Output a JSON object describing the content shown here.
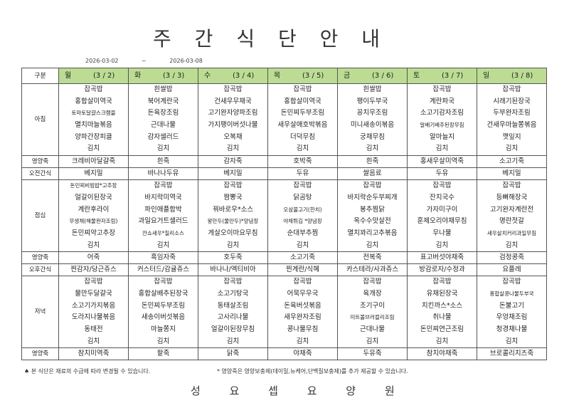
{
  "title": "주 간 식 단 안 내",
  "date_range": {
    "start": "2026-03-02",
    "sep": "~",
    "end": "2026-03-08"
  },
  "header": {
    "label": "구분",
    "days": [
      {
        "day": "월",
        "date": "(3 / 2)"
      },
      {
        "day": "화",
        "date": "(3 / 3)"
      },
      {
        "day": "수",
        "date": "(3 / 4)"
      },
      {
        "day": "목",
        "date": "(3 / 5)"
      },
      {
        "day": "금",
        "date": "(3 / 6)"
      },
      {
        "day": "토",
        "date": "(3 / 7)"
      },
      {
        "day": "일",
        "date": "(3 / 8)"
      }
    ]
  },
  "rows": {
    "breakfast": {
      "label": "아침",
      "days": [
        [
          "잡곡밥",
          "홍합살미역국",
          "토마토달걀스크램블",
          "멸치마늘볶음",
          "양파간장피클",
          "김치"
        ],
        [
          "흰쌀밥",
          "북어계란국",
          "돈육장조림",
          "근대나물",
          "감자샐러드",
          "김치"
        ],
        [
          "잡곡밥",
          "건새우무채국",
          "고기완자양파조림",
          "가지팽이버섯나물",
          "오복채",
          "김치"
        ],
        [
          "잡곡밥",
          "홍합살미역국",
          "돈민찌두부조림",
          "새우살애호박볶음",
          "더덕무침",
          "김치"
        ],
        [
          "흰쌀밥",
          "팽이두부국",
          "꽁치무조림",
          "미니새송이볶음",
          "궁채무침",
          "김치"
        ],
        [
          "잡곡밥",
          "계란파국",
          "소고기감자조림",
          "알배기배추된장무침",
          "알마늘지",
          "김치"
        ],
        [
          "잡곡밥",
          "시래기된장국",
          "두부완자조림",
          "건새우마늘쫑볶음",
          "깻잎지",
          "김치"
        ]
      ]
    },
    "porridge1": {
      "label": "영양죽",
      "days": [
        "크레비아달걀죽",
        "흰죽",
        "감자죽",
        "호박죽",
        "흰죽",
        "홍새우살미역죽",
        "소고기죽"
      ]
    },
    "am_snack": {
      "label": "오전간식",
      "days": [
        "베지밀",
        "바나나두유",
        "베지밀",
        "두유",
        "쌀음료",
        "두유",
        "베지밀"
      ]
    },
    "lunch": {
      "label": "점심",
      "days": [
        [
          "돈민찌비빔밥*고추장",
          "얼갈이된장국",
          "계란후라이",
          "무생채(해물완자조림)",
          "돈민찌약고추장",
          "김치"
        ],
        [
          "잡곡밥",
          "바지락미역국",
          "파인애플함박",
          "과일요거트샐러드",
          "깐쇼새우*칠리소스",
          "김치"
        ],
        [
          "잡곡밥",
          "짬뽕국",
          "꿔바로우*소스",
          "왕만두(물만두)*양념장",
          "게살오이마요무침",
          "김치"
        ],
        [
          "잡곡밥",
          "닭곰탕",
          "오삼불고기(한치)",
          "야채튀김 *양념장",
          "순대부추찜",
          "김치"
        ],
        [
          "잡곡밥",
          "바지락순두부찌개",
          "봉추찜닭",
          "옥수수맛살전",
          "멸치꽈리고추볶음",
          "김치"
        ],
        [
          "잡곡밥",
          "잔치국수",
          "가자미구이",
          "훈제오리야채무침",
          "무나물",
          "김치"
        ],
        [
          "잡곡밥",
          "등뼈해장국",
          "고기완자계란전",
          "명란젓갈",
          "새우살치커리과일무침",
          "김치"
        ]
      ]
    },
    "porridge2": {
      "label": "영양죽",
      "days": [
        "어죽",
        "흑임자죽",
        "호두죽",
        "소고기죽",
        "전복죽",
        "표고버섯야채죽",
        "검정콩죽"
      ]
    },
    "pm_snack": {
      "label": "오후간식",
      "days": [
        "찐감자/당근쥬스",
        "커스터드/감귤쥬스",
        "바나나/엑티비아",
        "찐계란/식혜",
        "카스테라/사과쥬스",
        "방감로자/수정과",
        "요플레"
      ]
    },
    "dinner": {
      "label": "저녁",
      "days": [
        [
          "잡곡밥",
          "물만두달걀국",
          "소고기가지볶음",
          "도라지나물볶음",
          "동태전",
          "김치"
        ],
        [
          "잡곡밥",
          "홍합살배추된장국",
          "돈민찌두부조림",
          "새송이버섯볶음",
          "마늘쫑지",
          "김치"
        ],
        [
          "잡곡밥",
          "소고기탕국",
          "동태살조림",
          "고사리나물",
          "얼갈이된장무침",
          "김치"
        ],
        [
          "잡곡밥",
          "어묵무우국",
          "돈육버섯볶음",
          "새우완자조림",
          "콩나물무침",
          "김치"
        ],
        [
          "잡곡밥",
          "육개장",
          "조기구이",
          "미트볼브러컬리조림",
          "근대나물",
          "김치"
        ],
        [
          "잡곡밥",
          "유채된장국",
          "치킨까스*소스",
          "취나물",
          "돈민찌연근조림",
          "김치"
        ],
        [
          "잡곡밥",
          "홍합살콩나물두부국",
          "돈불고기",
          "우엉채조림",
          "청경채나물",
          "김치"
        ]
      ]
    },
    "porridge3": {
      "label": "영양죽",
      "days": [
        "참치미역죽",
        "팥죽",
        "닭죽",
        "야채죽",
        "두유죽",
        "참치야채죽",
        "브로콜리치즈죽"
      ]
    }
  },
  "notes": {
    "left": "♠ 본 식단은 재료의 수급에 따라 변경될 수 있습니다.",
    "right": "* 영양죽은 영양보충제(데이밀,뉴케어,단백질보충제)를 추가 제공할 수 있습니다."
  },
  "footer": "성 요 셉 요 양 원",
  "colors": {
    "header_bg": "#bcdc93"
  }
}
